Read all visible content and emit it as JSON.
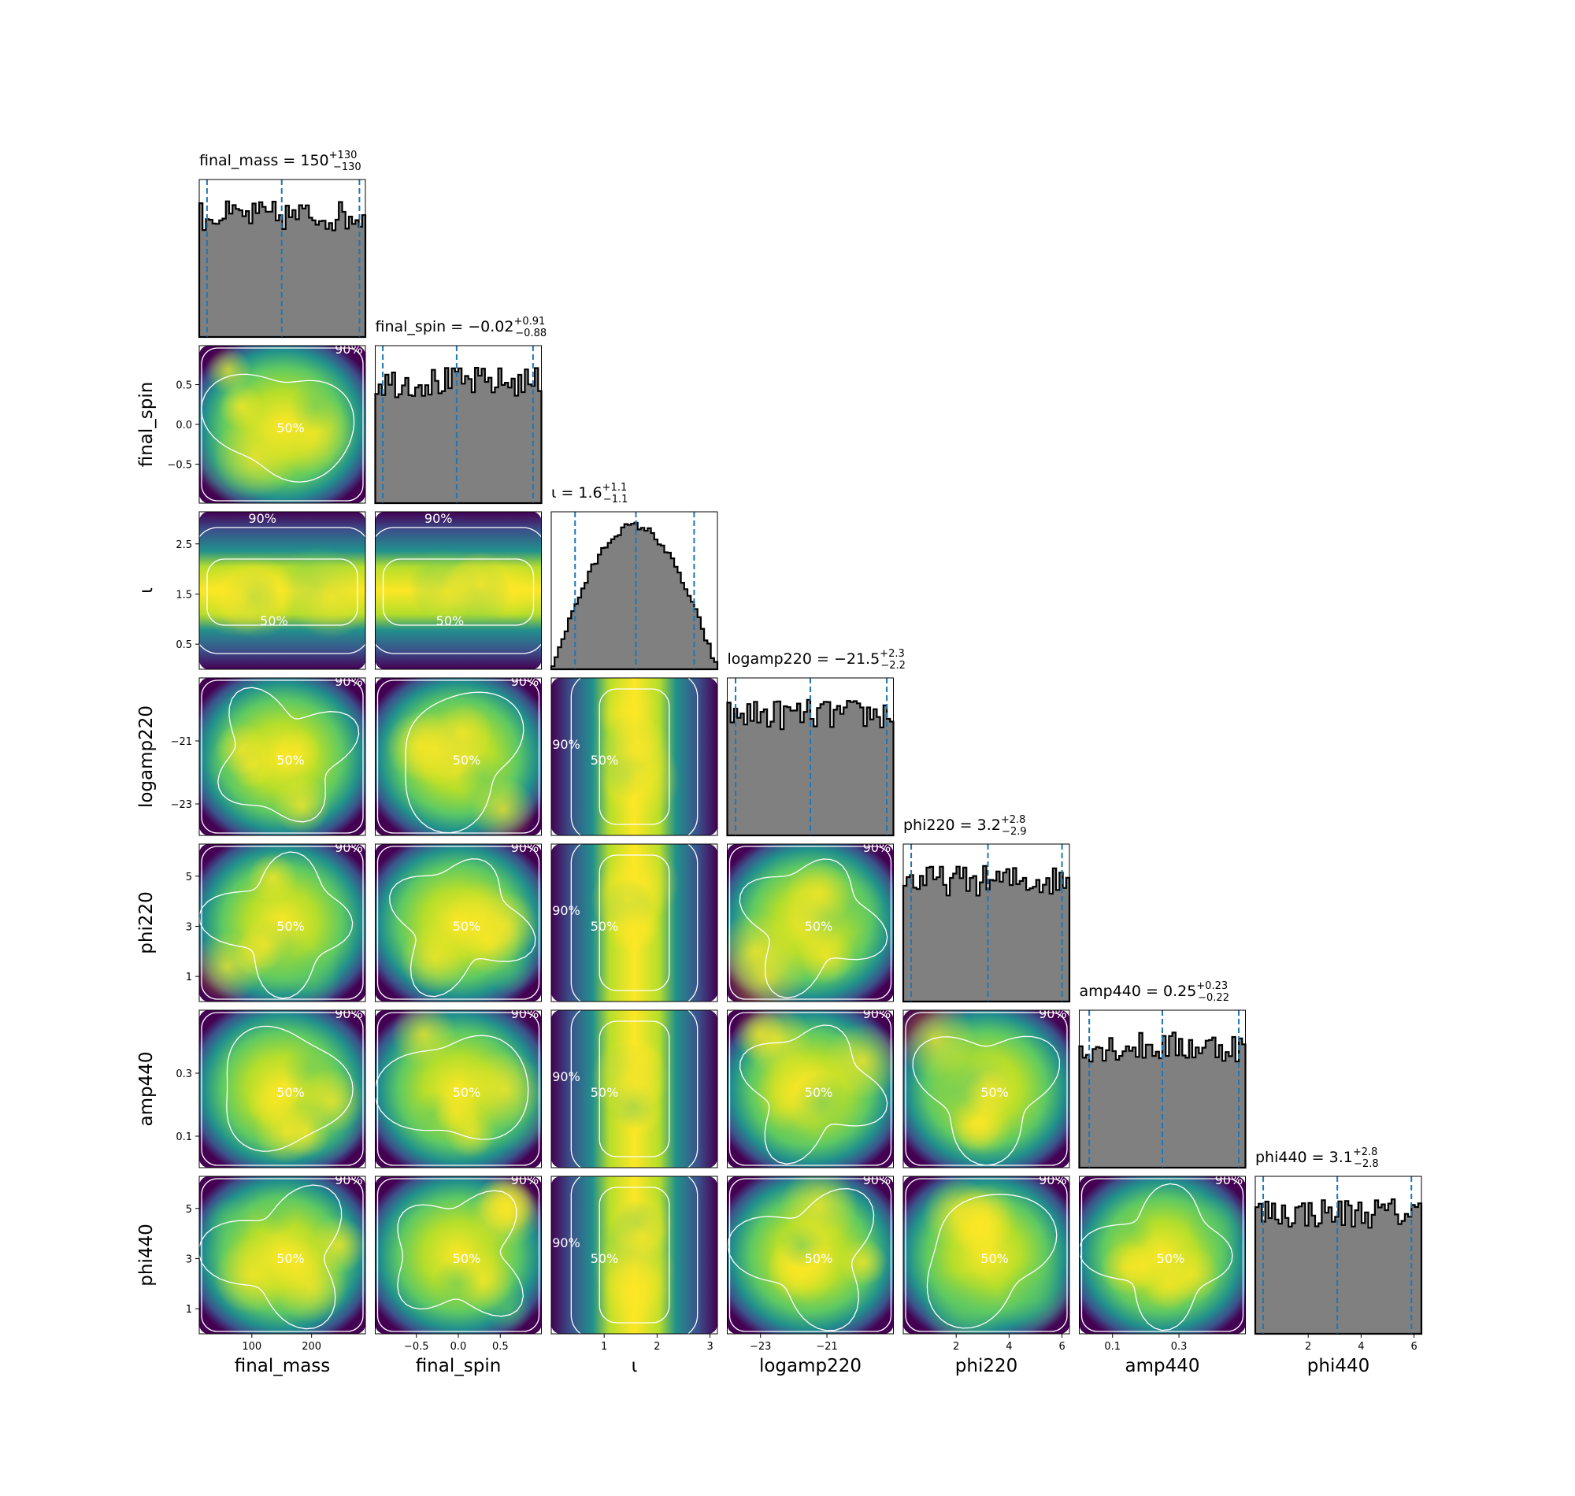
{
  "colors": {
    "hist_fill": "#808080",
    "hist_edge": "#000000",
    "quantile_line": "#1f77b4",
    "contour": "#ffffff",
    "cmap": [
      "#440154",
      "#3b528b",
      "#21918c",
      "#5ec962",
      "#b5de2b",
      "#fde725"
    ]
  },
  "chart_data": {
    "type": "corner",
    "parameters": [
      {
        "key": "final_mass",
        "axis_label": "final_mass",
        "title": {
          "prefix": "final_mass = ",
          "median": "150",
          "plus": "+130",
          "minus": "−130"
        },
        "range": [
          12,
          290
        ],
        "ticks": [
          100,
          200
        ],
        "tick_labels": [
          "100",
          "200"
        ],
        "quantiles": [
          25,
          150,
          280
        ],
        "shape": "uniform"
      },
      {
        "key": "final_spin",
        "axis_label": "final_spin",
        "title": {
          "prefix": "final_spin = ",
          "median": "−0.02",
          "plus": "+0.91",
          "minus": "−0.88"
        },
        "range": [
          -0.99,
          0.99
        ],
        "ticks": [
          -0.5,
          0.0,
          0.5
        ],
        "tick_labels": [
          "−0.5",
          "0.0",
          "0.5"
        ],
        "quantiles": [
          -0.9,
          -0.02,
          0.89
        ],
        "shape": "uniform"
      },
      {
        "key": "iota",
        "axis_label": "ι",
        "title": {
          "prefix": "ι = ",
          "median": "1.6",
          "plus": "+1.1",
          "minus": "−1.1"
        },
        "range": [
          0,
          3.14
        ],
        "ticks": [
          1,
          2,
          3
        ],
        "tick_labels": [
          "1",
          "2",
          "3"
        ],
        "yticks": [
          0.5,
          1.5,
          2.5
        ],
        "ytick_labels": [
          "0.5",
          "1.5",
          "2.5"
        ],
        "quantiles": [
          0.45,
          1.6,
          2.7
        ],
        "shape": "sine"
      },
      {
        "key": "logamp220",
        "axis_label": "logamp220",
        "title": {
          "prefix": "logamp220 = ",
          "median": "−21.5",
          "plus": "+2.3",
          "minus": "−2.2"
        },
        "range": [
          -24,
          -19
        ],
        "ticks": [
          -23,
          -21
        ],
        "tick_labels": [
          "−23",
          "−21"
        ],
        "quantiles": [
          -23.75,
          -21.5,
          -19.2
        ],
        "shape": "uniform"
      },
      {
        "key": "phi220",
        "axis_label": "phi220",
        "title": {
          "prefix": "phi220 = ",
          "median": "3.2",
          "plus": "+2.8",
          "minus": "−2.9"
        },
        "range": [
          0,
          6.28
        ],
        "ticks": [
          2,
          4,
          6
        ],
        "tick_labels": [
          "2",
          "4",
          "6"
        ],
        "yticks": [
          1,
          3,
          5
        ],
        "ytick_labels": [
          "1",
          "3",
          "5"
        ],
        "quantiles": [
          0.3,
          3.2,
          6.0
        ],
        "shape": "uniform"
      },
      {
        "key": "amp440",
        "axis_label": "amp440",
        "title": {
          "prefix": "amp440 = ",
          "median": "0.25",
          "plus": "+0.23",
          "minus": "−0.22"
        },
        "range": [
          0,
          0.5
        ],
        "ticks": [
          0.1,
          0.3
        ],
        "tick_labels": [
          "0.1",
          "0.3"
        ],
        "quantiles": [
          0.03,
          0.25,
          0.48
        ],
        "shape": "uniform"
      },
      {
        "key": "phi440",
        "axis_label": "phi440",
        "title": {
          "prefix": "phi440 = ",
          "median": "3.1",
          "plus": "+2.8",
          "minus": "−2.8"
        },
        "range": [
          0,
          6.28
        ],
        "ticks": [
          2,
          4,
          6
        ],
        "tick_labels": [
          "2",
          "4",
          "6"
        ],
        "yticks": [
          1,
          3,
          5
        ],
        "ytick_labels": [
          "1",
          "3",
          "5"
        ],
        "quantiles": [
          0.3,
          3.1,
          5.9
        ],
        "shape": "uniform"
      }
    ],
    "contour_levels": [
      "50%",
      "90%"
    ],
    "quantile_levels": [
      0.05,
      0.5,
      0.95
    ],
    "grid": false,
    "legend": "none"
  }
}
